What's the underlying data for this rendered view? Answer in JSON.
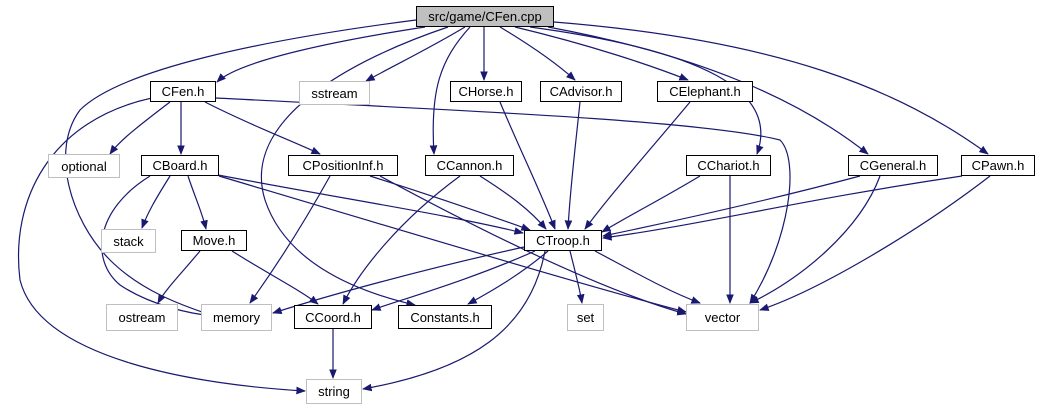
{
  "colors": {
    "edge": "#191970",
    "root_fill": "#bfbfbf",
    "external_border": "#bfbfbf",
    "internal_border": "#000000"
  },
  "nodes": {
    "cfen_cpp": "src/game/CFen.cpp",
    "cfen_h": "CFen.h",
    "sstream": "sstream",
    "chorse_h": "CHorse.h",
    "cadvisor_h": "CAdvisor.h",
    "celephant_h": "CElephant.h",
    "optional": "optional",
    "cboard_h": "CBoard.h",
    "cpositioninf_h": "CPositionInf.h",
    "ccannon_h": "CCannon.h",
    "cchariot_h": "CChariot.h",
    "cgeneral_h": "CGeneral.h",
    "cpawn_h": "CPawn.h",
    "stack": "stack",
    "move_h": "Move.h",
    "ctroop_h": "CTroop.h",
    "ostream": "ostream",
    "memory": "memory",
    "ccoord_h": "CCoord.h",
    "constants_h": "Constants.h",
    "set": "set",
    "vector": "vector",
    "string": "string"
  }
}
